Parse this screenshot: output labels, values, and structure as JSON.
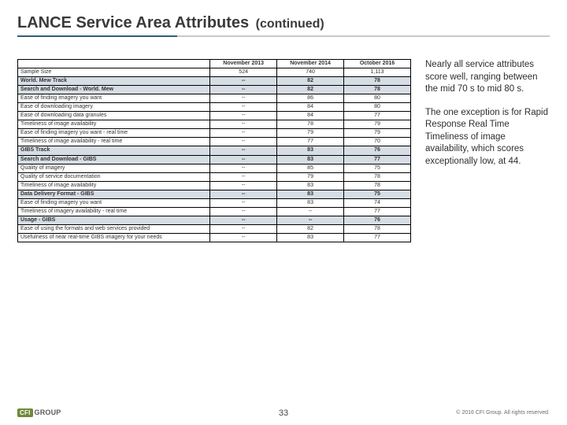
{
  "title": {
    "main": "LANCE Service Area Attributes",
    "sub": "(continued)"
  },
  "headers": [
    "",
    "November 2013",
    "November 2014",
    "October 2016"
  ],
  "rows": [
    {
      "shade": false,
      "label": "Sample Size",
      "v": [
        "524",
        "740",
        "1,113"
      ]
    },
    {
      "shade": true,
      "label": "World. Mew Track",
      "v": [
        "--",
        "82",
        "78"
      ]
    },
    {
      "shade": true,
      "label": "Search and Download - World. Mew",
      "v": [
        "--",
        "82",
        "78"
      ]
    },
    {
      "shade": false,
      "label": "Ease of finding imagery you want",
      "v": [
        "--",
        "86",
        "80"
      ]
    },
    {
      "shade": false,
      "label": "Ease of downloading imagery",
      "v": [
        "--",
        "84",
        "80"
      ]
    },
    {
      "shade": false,
      "label": "Ease of downloading data granules",
      "v": [
        "--",
        "84",
        "77"
      ]
    },
    {
      "shade": false,
      "label": "Timeliness of image availability",
      "v": [
        "--",
        "78",
        "79"
      ]
    },
    {
      "shade": false,
      "label": "Ease of finding imagery you want - real time",
      "v": [
        "--",
        "79",
        "79"
      ]
    },
    {
      "shade": false,
      "label": "Timeliness of image availability - real time",
      "v": [
        "--",
        "77",
        "70"
      ]
    },
    {
      "shade": true,
      "label": "GIBS Track",
      "v": [
        "--",
        "83",
        "76"
      ]
    },
    {
      "shade": true,
      "label": "Search and Download - GIBS",
      "v": [
        "--",
        "83",
        "77"
      ]
    },
    {
      "shade": false,
      "label": "Quality of imagery",
      "v": [
        "--",
        "85",
        "75"
      ]
    },
    {
      "shade": false,
      "label": "Quality of service documentation",
      "v": [
        "--",
        "79",
        "78"
      ]
    },
    {
      "shade": false,
      "label": "Timeliness of image availability",
      "v": [
        "--",
        "83",
        "78"
      ]
    },
    {
      "shade": true,
      "label": "Data Delivery Format - GIBS",
      "v": [
        "--",
        "83",
        "75"
      ]
    },
    {
      "shade": false,
      "label": "Ease of finding imagery you want",
      "v": [
        "--",
        "83",
        "74"
      ]
    },
    {
      "shade": false,
      "label": "Timeliness of imagery availability - real time",
      "v": [
        "--",
        "--",
        "77"
      ]
    },
    {
      "shade": true,
      "label": "Usage - GIBS",
      "v": [
        "--",
        "--",
        "76"
      ]
    },
    {
      "shade": false,
      "label": "Ease of using the formats and web services provided",
      "v": [
        "--",
        "82",
        "78"
      ]
    },
    {
      "shade": false,
      "label": "Usefulness of near real-time GIBS imagery for your needs",
      "v": [
        "--",
        "83",
        "77"
      ]
    }
  ],
  "side": {
    "p1": "Nearly all service attributes score well, ranging between the mid 70 s to mid 80 s.",
    "p2": "The one exception is for Rapid Response Real Time Timeliness of image availability, which scores exceptionally low, at 44."
  },
  "footer": {
    "page": "33",
    "copyright": "© 2016 CFI Group. All rights reserved.",
    "logo_box": "CFI",
    "logo_text": "GROUP"
  }
}
